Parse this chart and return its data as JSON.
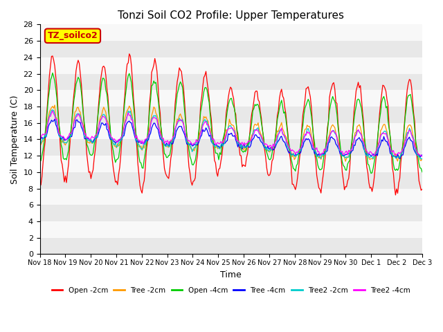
{
  "title": "Tonzi Soil CO2 Profile: Upper Temperatures",
  "xlabel": "Time",
  "ylabel": "Soil Temperature (C)",
  "ylim": [
    0,
    28
  ],
  "yticks": [
    0,
    2,
    4,
    6,
    8,
    10,
    12,
    14,
    16,
    18,
    20,
    22,
    24,
    26,
    28
  ],
  "series_labels": [
    "Open -2cm",
    "Tree -2cm",
    "Open -4cm",
    "Tree -4cm",
    "Tree2 -2cm",
    "Tree2 -4cm"
  ],
  "series_colors": [
    "#ff0000",
    "#ff9900",
    "#00cc00",
    "#0000ff",
    "#00cccc",
    "#ff00ff"
  ],
  "legend_box_text": "TZ_soilco2",
  "background_color": "#ffffff",
  "band_colors": [
    "#e8e8e8",
    "#f8f8f8"
  ],
  "num_days": 15,
  "x_tick_labels": [
    "Nov 18",
    "Nov 19",
    "Nov 20",
    "Nov 21",
    "Nov 22",
    "Nov 23",
    "Nov 24",
    "Nov 25",
    "Nov 26",
    "Nov 27",
    "Nov 28",
    "Nov 29",
    "Nov 30",
    "Dec 1",
    "Dec 2",
    "Dec 3"
  ]
}
